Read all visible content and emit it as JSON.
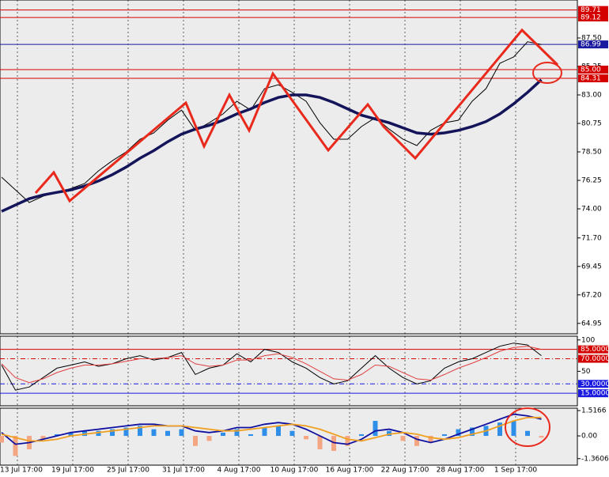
{
  "chart_data": [
    {
      "type": "line",
      "ylim": [
        64.125,
        90.5
      ],
      "yticks": [
        {
          "value": 87.5,
          "label": "87.50"
        },
        85.25,
        {
          "value": 83,
          "label": "83.00"
        },
        80.75,
        {
          "value": 78.5,
          "label": "78.50"
        },
        76.25,
        {
          "value": 74,
          "label": "74.00"
        },
        {
          "value": 71.7,
          "label": "71.70"
        },
        69.45,
        {
          "value": 67.2,
          "label": "67.20"
        },
        64.95
      ],
      "hlines": [
        {
          "value": 89.71,
          "color": "#d40000"
        },
        {
          "value": 89.12,
          "color": "#d40000"
        },
        {
          "value": 86.99,
          "color": "#1a1aa0"
        },
        {
          "value": 85,
          "label": "85.00",
          "color": "#d40000"
        },
        {
          "value": 84.31,
          "color": "#d40000"
        }
      ],
      "time_labels": [
        "13 Jul 17:00",
        "19 Jul 17:00",
        "25 Jul 17:00",
        "31 Jul 17:00",
        "4 Aug 17:00",
        "10 Aug 17:00",
        "16 Aug 17:00",
        "22 Aug 17:00",
        "28 Aug 17:00",
        "1 Sep 17:00"
      ],
      "series": [
        {
          "color": "#000000",
          "values": [
            76.5,
            75.5,
            74.5,
            75.0,
            75.3,
            75.6,
            76.0,
            77.0,
            77.8,
            78.5,
            79.5,
            80.0,
            81.0,
            81.8,
            80.2,
            80.8,
            81.5,
            82.5,
            81.8,
            83.5,
            83.8,
            83.2,
            82.5,
            80.8,
            79.5,
            79.5,
            80.5,
            81.2,
            80.3,
            79.5,
            79.0,
            80.2,
            80.8,
            81.0,
            82.5,
            83.5,
            85.5,
            86.0,
            87.2,
            86.99
          ]
        },
        {
          "color": "#14145a",
          "values": [
            73.8,
            74.3,
            74.8,
            75.1,
            75.3,
            75.5,
            75.8,
            76.2,
            76.7,
            77.3,
            78.0,
            78.6,
            79.3,
            79.9,
            80.3,
            80.6,
            81.0,
            81.5,
            81.9,
            82.4,
            82.8,
            83.0,
            83.0,
            82.8,
            82.4,
            81.9,
            81.4,
            81.1,
            80.8,
            80.4,
            80.0,
            79.9,
            80.0,
            80.2,
            80.5,
            80.9,
            81.5,
            82.3,
            83.2,
            84.2
          ]
        }
      ]
    },
    {
      "type": "line",
      "ylim": [
        -5,
        106
      ],
      "yticks": [
        100,
        50
      ],
      "hlines": [
        {
          "value": 85,
          "label": "85.0000",
          "color": "#d40000"
        },
        {
          "value": 70,
          "label": "70.0000",
          "color": "#d40000"
        },
        {
          "value": 30,
          "label": "30.0000",
          "color": "#1a1ae0"
        },
        {
          "value": 15,
          "label": "15.0000",
          "color": "#1a1ae0"
        }
      ],
      "series": [
        {
          "color": "#000000",
          "values": [
            60,
            20,
            25,
            40,
            55,
            60,
            65,
            58,
            62,
            70,
            75,
            68,
            72,
            80,
            45,
            55,
            60,
            78,
            65,
            85,
            80,
            65,
            55,
            40,
            30,
            35,
            55,
            75,
            55,
            40,
            30,
            35,
            55,
            65,
            70,
            80,
            90,
            95,
            92,
            75
          ]
        },
        {
          "color": "#e04040",
          "values": [
            62,
            40,
            32,
            38,
            48,
            55,
            60,
            60,
            62,
            66,
            70,
            70,
            72,
            75,
            62,
            58,
            60,
            68,
            68,
            75,
            78,
            72,
            62,
            50,
            38,
            36,
            45,
            60,
            58,
            48,
            38,
            36,
            45,
            55,
            63,
            72,
            82,
            88,
            90,
            85
          ]
        }
      ]
    },
    {
      "type": "bar",
      "ylim": [
        -1.75,
        1.66
      ],
      "yticks": [
        1.5166,
        {
          "value": 0,
          "label": "0.00"
        },
        -1.3606
      ],
      "colors": {
        "up": "#2f8fe8",
        "down": "#f4a582"
      },
      "values": [
        -0.4,
        -1.2,
        -0.8,
        -0.2,
        0.1,
        0.2,
        0.3,
        0.3,
        0.4,
        0.5,
        0.6,
        0.4,
        0.3,
        0.4,
        -0.6,
        -0.3,
        0.2,
        0.4,
        0.1,
        0.5,
        0.6,
        0.3,
        -0.2,
        -0.8,
        -0.9,
        -0.6,
        0.1,
        0.9,
        0.3,
        -0.3,
        -0.6,
        -0.4,
        0.1,
        0.4,
        0.5,
        0.6,
        0.8,
        0.9,
        0.3,
        -0.1
      ],
      "series": [
        {
          "color": "#1010a0",
          "values": [
            0.2,
            -0.5,
            -0.4,
            -0.2,
            0.0,
            0.2,
            0.3,
            0.4,
            0.5,
            0.6,
            0.7,
            0.7,
            0.6,
            0.6,
            0.3,
            0.2,
            0.3,
            0.5,
            0.5,
            0.7,
            0.8,
            0.7,
            0.4,
            0.0,
            -0.4,
            -0.5,
            -0.2,
            0.3,
            0.4,
            0.2,
            -0.2,
            -0.4,
            -0.2,
            0.1,
            0.4,
            0.7,
            1.0,
            1.3,
            1.2,
            1.0
          ]
        },
        {
          "color": "#f0a020",
          "values": [
            0.1,
            -0.1,
            -0.3,
            -0.3,
            -0.2,
            0.0,
            0.1,
            0.2,
            0.3,
            0.4,
            0.5,
            0.6,
            0.6,
            0.6,
            0.5,
            0.4,
            0.3,
            0.3,
            0.4,
            0.5,
            0.6,
            0.7,
            0.6,
            0.4,
            0.1,
            -0.2,
            -0.3,
            -0.1,
            0.1,
            0.2,
            0.1,
            -0.1,
            -0.2,
            -0.1,
            0.1,
            0.3,
            0.6,
            0.9,
            1.1,
            1.1
          ]
        }
      ]
    }
  ]
}
